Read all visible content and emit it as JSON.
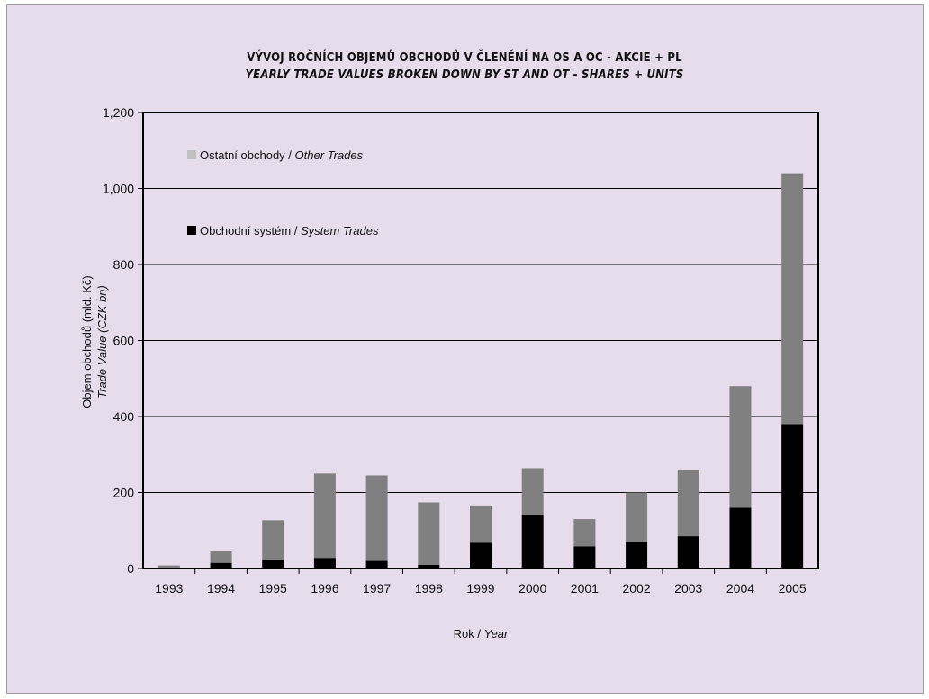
{
  "chart_data": {
    "type": "bar",
    "stacked": true,
    "title": "VÝVOJ ROČNÍCH OBJEMŮ OBCHODŮ V ČLENĚNÍ NA OS A OC - AKCIE + PL",
    "subtitle": "YEARLY TRADE VALUES BROKEN DOWN BY ST AND OT - SHARES + UNITS",
    "ylabel_cz": "Objem obchodů (mld. Kč)",
    "ylabel_en": "Trade Value (CZK bn)",
    "xlabel_cz": "Rok",
    "xlabel_sep": " / ",
    "xlabel_en": "Year",
    "ylim": [
      0,
      1200
    ],
    "yticks": [
      0,
      200,
      400,
      600,
      800,
      1000,
      1200
    ],
    "ytick_labels": [
      "0",
      "200",
      "400",
      "600",
      "800",
      "1,000",
      "1,200"
    ],
    "grid": true,
    "legend_position": "top-left",
    "categories": [
      "1993",
      "1994",
      "1995",
      "1996",
      "1997",
      "1998",
      "1999",
      "2000",
      "2001",
      "2002",
      "2003",
      "2004",
      "2005"
    ],
    "series": [
      {
        "name_cz": "Obchodní systém",
        "name_en": "System Trades",
        "color": "#000000",
        "values": [
          1,
          15,
          23,
          28,
          20,
          10,
          68,
          142,
          58,
          70,
          85,
          160,
          380
        ]
      },
      {
        "name_cz": "Ostatní obchody",
        "name_en": "Other Trades",
        "color": "#808080",
        "values": [
          7,
          30,
          104,
          222,
          225,
          164,
          98,
          122,
          72,
          130,
          175,
          320,
          660
        ]
      }
    ],
    "legend_swatch_color_other": "#c0c0c0",
    "legend_sep": " / "
  },
  "colors": {
    "background": "#e6dcec",
    "gridline": "#000000"
  }
}
